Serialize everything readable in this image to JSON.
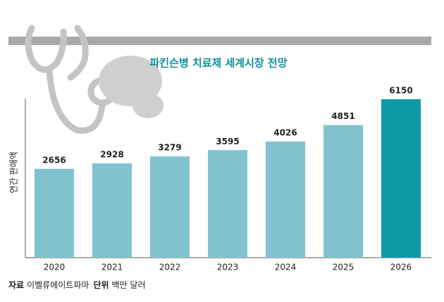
{
  "chart_data": {
    "type": "bar",
    "title": "파킨슨병 치료제 세계시장 전망",
    "y_label": "연간 판매액",
    "categories": [
      "2020",
      "2021",
      "2022",
      "2023",
      "2024",
      "2025",
      "2026"
    ],
    "values": [
      2656,
      2928,
      3279,
      3595,
      4026,
      4851,
      6150
    ],
    "colors": [
      "#80c3cf",
      "#80c3cf",
      "#80c3cf",
      "#80c3cf",
      "#80c3cf",
      "#80c3cf",
      "#0e9aa7"
    ],
    "ylim": [
      -1800,
      6500
    ],
    "notes": [
      {
        "label": "자료",
        "text": "이벨류에이트파마"
      },
      {
        "label": "단위",
        "text": "백만 달러"
      }
    ]
  }
}
